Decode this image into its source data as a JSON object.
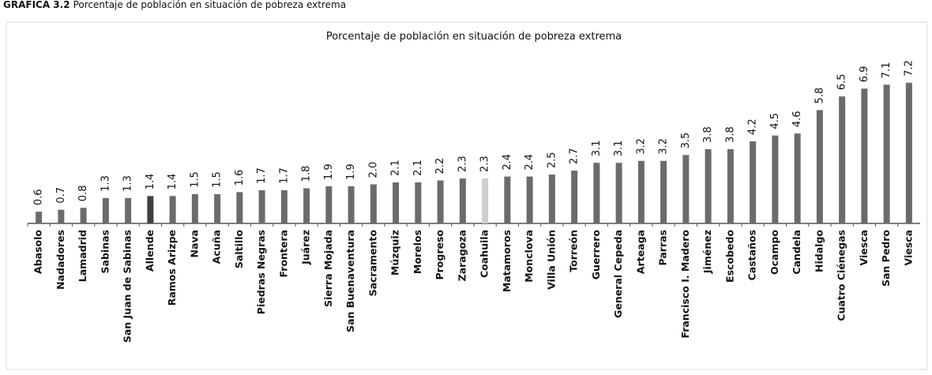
{
  "chart_data": {
    "type": "bar",
    "header": {
      "label": "GRÁFICA 3.2",
      "text": "Porcentaje de población en situación de pobreza extrema"
    },
    "title": "Porcentaje de población en situación de pobreza extrema",
    "categories": [
      "Abasolo",
      "Nadadores",
      "Lamadrid",
      "Sabinas",
      "San Juan de Sabinas",
      "Allende",
      "Ramos Arizpe",
      "Nava",
      "Acuña",
      "Saltillo",
      "Piedras Negras",
      "Frontera",
      "Juárez",
      "Sierra Mojada",
      "San Buenaventura",
      "Sacramento",
      "Múzquiz",
      "Morelos",
      "Progreso",
      "Zaragoza",
      "Coahuila",
      "Matamoros",
      "Monclova",
      "Villa Unión",
      "Torreón",
      "Guerrero",
      "General Cepeda",
      "Arteaga",
      "Parras",
      "Francisco I. Madero",
      "Jiménez",
      "Escobedo",
      "Castaños",
      "Ocampo",
      "Candela",
      "Hidalgo",
      "Cuatro Ciénegas",
      "Viesca",
      "San Pedro",
      "Viesca"
    ],
    "values": [
      0.6,
      0.7,
      0.8,
      1.3,
      1.3,
      1.4,
      1.4,
      1.5,
      1.5,
      1.6,
      1.7,
      1.7,
      1.8,
      1.9,
      1.9,
      2.0,
      2.1,
      2.1,
      2.2,
      2.3,
      2.3,
      2.4,
      2.4,
      2.5,
      2.7,
      3.1,
      3.1,
      3.2,
      3.2,
      3.5,
      3.8,
      3.8,
      4.2,
      4.5,
      4.6,
      5.8,
      6.5,
      6.9,
      7.1,
      7.2
    ],
    "value_labels": [
      "0.6",
      "0.7",
      "0.8",
      "1.3",
      "1.3",
      "1.4",
      "1.4",
      "1.5",
      "1.5",
      "1.6",
      "1.7",
      "1.7",
      "1.8",
      "1.9",
      "1.9",
      "2.0",
      "2.1",
      "2.1",
      "2.2",
      "2.3",
      "2.3",
      "2.4",
      "2.4",
      "2.5",
      "2.7",
      "3.1",
      "3.1",
      "3.2",
      "3.2",
      "3.5",
      "3.8",
      "3.8",
      "4.2",
      "4.5",
      "4.6",
      "5.8",
      "6.5",
      "6.9",
      "7.1",
      "7.2"
    ],
    "colors": [
      "#6b6b6b",
      "#6b6b6b",
      "#6b6b6b",
      "#6b6b6b",
      "#6b6b6b",
      "#3f3f3f",
      "#6b6b6b",
      "#6b6b6b",
      "#6b6b6b",
      "#6b6b6b",
      "#6b6b6b",
      "#6b6b6b",
      "#6b6b6b",
      "#6b6b6b",
      "#6b6b6b",
      "#6b6b6b",
      "#6b6b6b",
      "#6b6b6b",
      "#6b6b6b",
      "#6b6b6b",
      "#cfcfcf",
      "#6b6b6b",
      "#6b6b6b",
      "#6b6b6b",
      "#6b6b6b",
      "#6b6b6b",
      "#6b6b6b",
      "#6b6b6b",
      "#6b6b6b",
      "#6b6b6b",
      "#6b6b6b",
      "#6b6b6b",
      "#6b6b6b",
      "#6b6b6b",
      "#6b6b6b",
      "#6b6b6b",
      "#6b6b6b",
      "#6b6b6b",
      "#6b6b6b",
      "#6b6b6b"
    ],
    "ylim": [
      0,
      8
    ]
  }
}
